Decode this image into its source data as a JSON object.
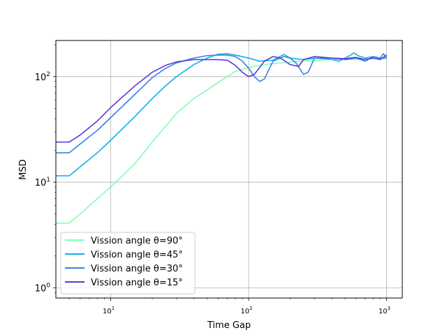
{
  "chart_data": {
    "type": "line",
    "title": "",
    "xlabel": "Time Gap",
    "ylabel": "MSD",
    "xscale": "log",
    "yscale": "log",
    "xlim": [
      4,
      1300
    ],
    "ylim": [
      0.8,
      220
    ],
    "grid": true,
    "legend_position": "lower-left",
    "x_ticks": [
      {
        "value": 10,
        "base": "10",
        "exp": "1"
      },
      {
        "value": 100,
        "base": "10",
        "exp": "2"
      },
      {
        "value": 1000,
        "base": "10",
        "exp": "3"
      }
    ],
    "y_ticks": [
      {
        "value": 1,
        "base": "10",
        "exp": "0"
      },
      {
        "value": 10,
        "base": "10",
        "exp": "1"
      },
      {
        "value": 100,
        "base": "10",
        "exp": "2"
      }
    ],
    "series": [
      {
        "name": "Vission angle θ=90°",
        "color": "#80ffb4",
        "points": [
          [
            4,
            4.1
          ],
          [
            5,
            4.1
          ],
          [
            6,
            5
          ],
          [
            8,
            7
          ],
          [
            10,
            9
          ],
          [
            15,
            15
          ],
          [
            20,
            24
          ],
          [
            30,
            45
          ],
          [
            40,
            62
          ],
          [
            50,
            75
          ],
          [
            60,
            88
          ],
          [
            70,
            100
          ],
          [
            80,
            112
          ],
          [
            100,
            122
          ],
          [
            120,
            128
          ],
          [
            150,
            133
          ],
          [
            200,
            137
          ],
          [
            250,
            141
          ],
          [
            300,
            143
          ],
          [
            350,
            144
          ],
          [
            400,
            146
          ],
          [
            500,
            145
          ],
          [
            600,
            146
          ],
          [
            700,
            147
          ],
          [
            800,
            148
          ],
          [
            900,
            150
          ],
          [
            1000,
            150
          ]
        ]
      },
      {
        "name": "Vission angle θ=45°",
        "color": "#10b0e8",
        "points": [
          [
            4,
            11.5
          ],
          [
            5,
            11.5
          ],
          [
            6,
            14
          ],
          [
            8,
            19
          ],
          [
            10,
            25
          ],
          [
            15,
            42
          ],
          [
            20,
            62
          ],
          [
            25,
            82
          ],
          [
            30,
            100
          ],
          [
            40,
            130
          ],
          [
            50,
            150
          ],
          [
            60,
            163
          ],
          [
            70,
            165
          ],
          [
            80,
            160
          ],
          [
            100,
            150
          ],
          [
            120,
            140
          ],
          [
            150,
            143
          ],
          [
            180,
            162
          ],
          [
            200,
            150
          ],
          [
            250,
            145
          ],
          [
            300,
            150
          ],
          [
            350,
            148
          ],
          [
            400,
            145
          ],
          [
            450,
            140
          ],
          [
            500,
            150
          ],
          [
            550,
            160
          ],
          [
            580,
            168
          ],
          [
            620,
            158
          ],
          [
            700,
            150
          ],
          [
            800,
            155
          ],
          [
            900,
            148
          ],
          [
            1000,
            150
          ]
        ]
      },
      {
        "name": "Vission angle θ=30°",
        "color": "#3c80e0",
        "points": [
          [
            4,
            19
          ],
          [
            5,
            19
          ],
          [
            6,
            23
          ],
          [
            8,
            31
          ],
          [
            10,
            41
          ],
          [
            15,
            68
          ],
          [
            20,
            98
          ],
          [
            25,
            120
          ],
          [
            30,
            135
          ],
          [
            40,
            150
          ],
          [
            50,
            158
          ],
          [
            60,
            160
          ],
          [
            70,
            160
          ],
          [
            80,
            155
          ],
          [
            90,
            140
          ],
          [
            100,
            120
          ],
          [
            110,
            100
          ],
          [
            120,
            90
          ],
          [
            130,
            95
          ],
          [
            150,
            140
          ],
          [
            180,
            155
          ],
          [
            200,
            150
          ],
          [
            220,
            135
          ],
          [
            250,
            105
          ],
          [
            270,
            110
          ],
          [
            300,
            150
          ],
          [
            400,
            150
          ],
          [
            500,
            145
          ],
          [
            600,
            150
          ],
          [
            700,
            140
          ],
          [
            800,
            155
          ],
          [
            900,
            150
          ],
          [
            950,
            165
          ],
          [
            1000,
            150
          ]
        ]
      },
      {
        "name": "Vission angle θ=15°",
        "color": "#5a38e0",
        "points": [
          [
            4,
            24
          ],
          [
            5,
            24
          ],
          [
            6,
            28
          ],
          [
            8,
            38
          ],
          [
            10,
            51
          ],
          [
            15,
            82
          ],
          [
            20,
            110
          ],
          [
            25,
            128
          ],
          [
            30,
            138
          ],
          [
            40,
            145
          ],
          [
            50,
            145
          ],
          [
            60,
            145
          ],
          [
            70,
            143
          ],
          [
            80,
            128
          ],
          [
            90,
            110
          ],
          [
            100,
            100
          ],
          [
            110,
            105
          ],
          [
            130,
            140
          ],
          [
            150,
            155
          ],
          [
            170,
            150
          ],
          [
            200,
            130
          ],
          [
            230,
            125
          ],
          [
            250,
            145
          ],
          [
            300,
            155
          ],
          [
            400,
            150
          ],
          [
            500,
            148
          ],
          [
            600,
            152
          ],
          [
            700,
            145
          ],
          [
            800,
            150
          ],
          [
            900,
            145
          ],
          [
            1000,
            160
          ]
        ]
      }
    ]
  }
}
